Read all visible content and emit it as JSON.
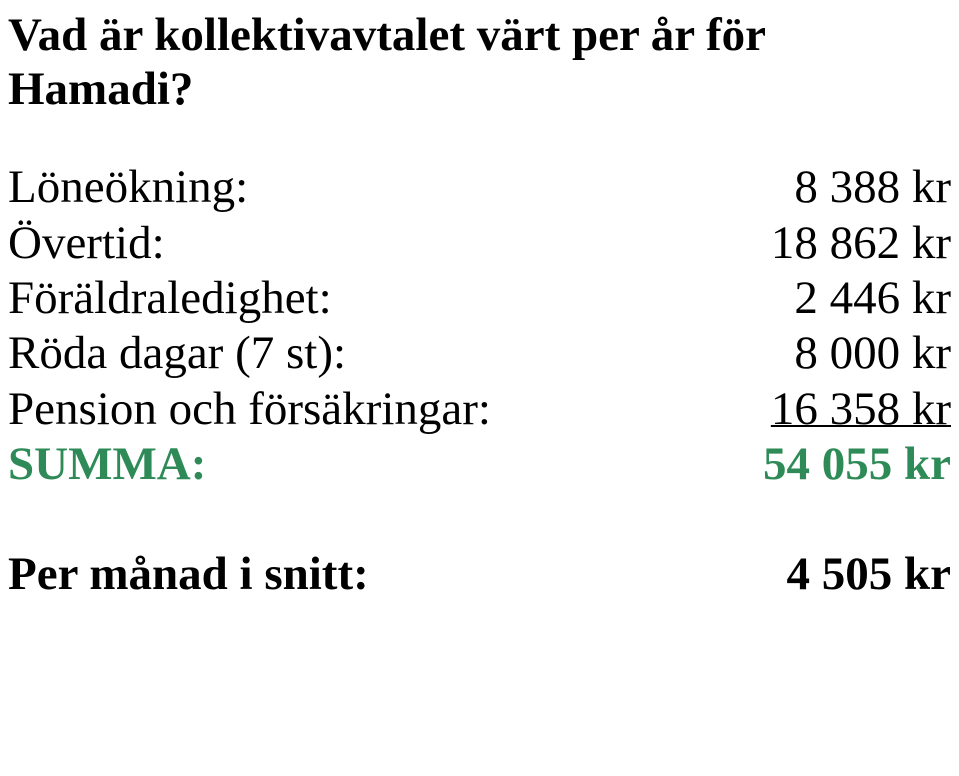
{
  "colors": {
    "text": "#000000",
    "accent": "#2e8b57",
    "background": "#ffffff"
  },
  "typography": {
    "font_family": "Times New Roman",
    "title_fontsize_pt": 36,
    "title_weight": "bold",
    "body_fontsize_pt": 36,
    "body_weight": "normal",
    "summa_weight": "bold",
    "footer_weight": "bold"
  },
  "title": "Vad är kollektivavtalet värt per år för Hamadi?",
  "rows": {
    "loneokning": {
      "label": "Löneökning:",
      "value": "8 388 kr"
    },
    "overtid": {
      "label": "Övertid:",
      "value": "18 862 kr"
    },
    "foraldraledighet": {
      "label": "Föräldraledighet:",
      "value": "2 446 kr"
    },
    "roda_dagar": {
      "label": "Röda dagar (7 st):",
      "value": "8 000 kr"
    },
    "pension": {
      "label": "Pension och försäkringar:",
      "value": "16 358 kr",
      "value_style": "underline"
    },
    "summa": {
      "label": "SUMMA:",
      "value": "54 055 kr",
      "color": "#2e8b57"
    }
  },
  "footer": {
    "label": "Per månad i snitt:",
    "value": "4 505 kr"
  }
}
